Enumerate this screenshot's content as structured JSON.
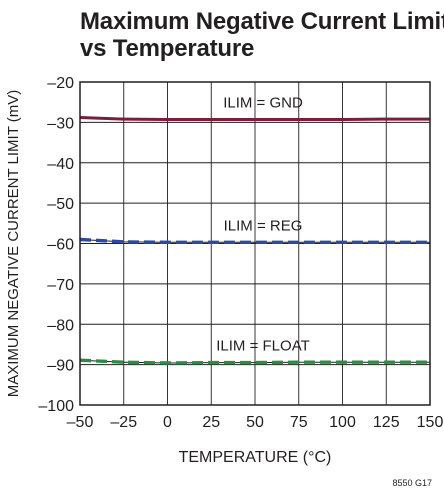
{
  "chart_data": {
    "type": "line",
    "title_lines": [
      "Maximum Negative Current Limit",
      "vs Temperature"
    ],
    "xlabel": "TEMPERATURE (°C)",
    "ylabel": "MAXIMUM NEGATIVE CURRENT LIMIT (mV)",
    "xlim": [
      -50,
      150
    ],
    "ylim": [
      -100,
      -20
    ],
    "xticks": [
      -50,
      -25,
      0,
      25,
      50,
      75,
      100,
      125,
      150
    ],
    "yticks": [
      -20,
      -30,
      -40,
      -50,
      -60,
      -70,
      -80,
      -90,
      -100
    ],
    "xtick_labels": [
      "–50",
      "–25",
      "0",
      "25",
      "50",
      "75",
      "100",
      "125",
      "150"
    ],
    "ytick_labels": [
      "–20",
      "–30",
      "–40",
      "–50",
      "–60",
      "–70",
      "–80",
      "–90",
      "–100"
    ],
    "grid": true,
    "series": [
      {
        "name": "ILIM = GND",
        "color": "#7a1e3a",
        "style": "solid",
        "x": [
          -50,
          -25,
          0,
          25,
          50,
          75,
          100,
          125,
          150
        ],
        "values": [
          -28.8,
          -29.2,
          -29.3,
          -29.3,
          -29.3,
          -29.3,
          -29.3,
          -29.2,
          -29.2
        ]
      },
      {
        "name": "ILIM = REG",
        "color": "#2e4a9e",
        "style": "dashed",
        "x": [
          -50,
          -25,
          0,
          25,
          50,
          75,
          100,
          125,
          150
        ],
        "values": [
          -59.0,
          -59.6,
          -59.7,
          -59.7,
          -59.7,
          -59.7,
          -59.7,
          -59.7,
          -59.7
        ]
      },
      {
        "name": "ILIM = FLOAT",
        "color": "#2f8a4a",
        "style": "dashed",
        "x": [
          -50,
          -25,
          0,
          25,
          50,
          75,
          100,
          125,
          150
        ],
        "values": [
          -88.9,
          -89.4,
          -89.6,
          -89.5,
          -89.5,
          -89.4,
          -89.4,
          -89.4,
          -89.4
        ]
      }
    ],
    "figure_id": "8550 G17"
  }
}
